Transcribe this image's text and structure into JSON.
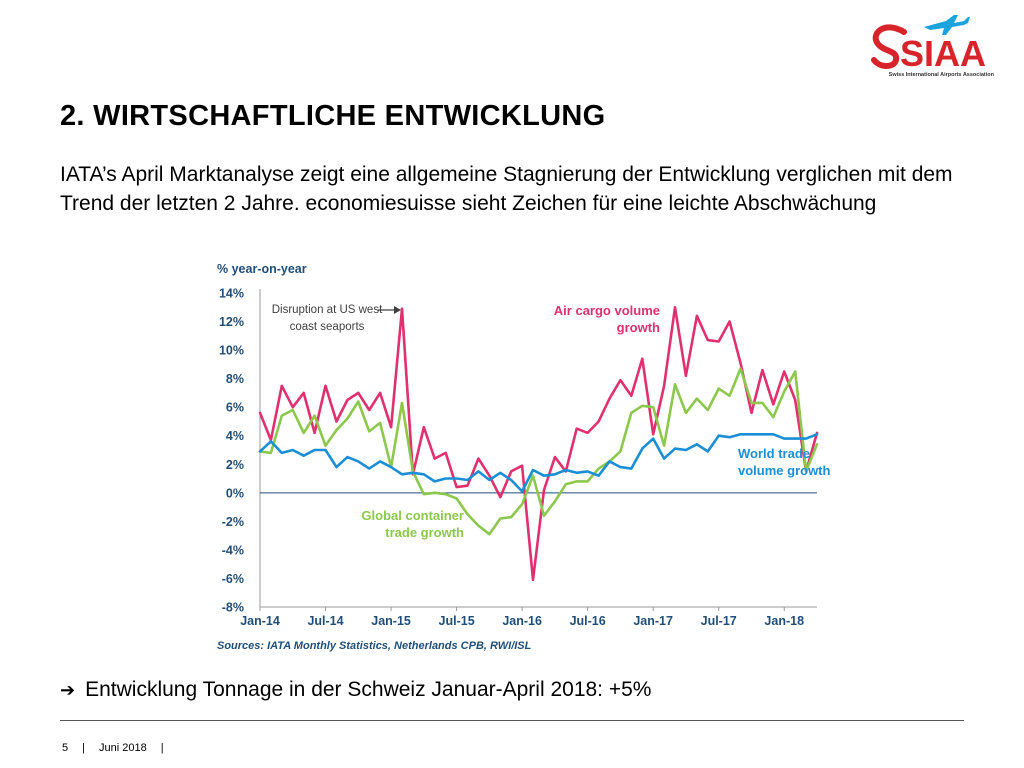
{
  "logo": {
    "text": "SIAA",
    "tagline": "Swiss International Airports Association",
    "icon": "airplane-icon",
    "color": "#d8232a"
  },
  "slide": {
    "title": "2. WIRTSCHAFTLICHE ENTWICKLUNG",
    "subtitle": "IATA’s April Marktanalyse zeigt eine allgemeine Stagnierung der Entwicklung verglichen mit dem Trend der letzten 2 Jahre. economiesuisse sieht Zeichen für eine leichte Abschwächung",
    "bullet_icon": "arrow-right-icon",
    "bullet": "Entwicklung Tonnage in der Schweiz Januar-April 2018: +5%"
  },
  "footer": {
    "page": "5",
    "separator": "|",
    "date": "Juni 2018"
  },
  "chart_data": {
    "type": "line",
    "title": "",
    "ylabel": "% year-on-year",
    "xlabel": "",
    "ylim": [
      -8,
      14
    ],
    "yticks": [
      "14%",
      "12%",
      "10%",
      "8%",
      "6%",
      "4%",
      "2%",
      "0%",
      "-2%",
      "-4%",
      "-6%",
      "-8%"
    ],
    "xticks": [
      "Jan-14",
      "Jul-14",
      "Jan-15",
      "Jul-15",
      "Jan-16",
      "Jul-16",
      "Jan-17",
      "Jul-17",
      "Jan-18"
    ],
    "x": [
      "Jan-14",
      "Feb-14",
      "Mar-14",
      "Apr-14",
      "May-14",
      "Jun-14",
      "Jul-14",
      "Aug-14",
      "Sep-14",
      "Oct-14",
      "Nov-14",
      "Dec-14",
      "Jan-15",
      "Feb-15",
      "Mar-15",
      "Apr-15",
      "May-15",
      "Jun-15",
      "Jul-15",
      "Aug-15",
      "Sep-15",
      "Oct-15",
      "Nov-15",
      "Dec-15",
      "Jan-16",
      "Feb-16",
      "Mar-16",
      "Apr-16",
      "May-16",
      "Jun-16",
      "Jul-16",
      "Aug-16",
      "Sep-16",
      "Oct-16",
      "Nov-16",
      "Dec-16",
      "Jan-17",
      "Feb-17",
      "Mar-17",
      "Apr-17",
      "May-17",
      "Jun-17",
      "Jul-17",
      "Aug-17",
      "Sep-17",
      "Oct-17",
      "Nov-17",
      "Dec-17",
      "Jan-18",
      "Feb-18",
      "Mar-18",
      "Apr-18"
    ],
    "series": [
      {
        "name": "Air cargo volume growth",
        "color": "#e0306e",
        "values": [
          5.6,
          3.7,
          7.5,
          6.0,
          7.0,
          4.2,
          7.5,
          5.0,
          6.5,
          7.0,
          5.8,
          7.0,
          4.6,
          12.9,
          1.3,
          4.6,
          2.4,
          2.8,
          0.4,
          0.5,
          2.4,
          1.2,
          -0.3,
          1.5,
          1.9,
          -6.1,
          0.2,
          2.5,
          1.5,
          4.5,
          4.2,
          5.0,
          6.6,
          7.9,
          6.8,
          9.4,
          4.1,
          7.5,
          13.0,
          8.2,
          12.4,
          10.7,
          10.6,
          12.0,
          9.1,
          5.6,
          8.6,
          6.2,
          8.5,
          6.5,
          1.5,
          4.2
        ]
      },
      {
        "name": "Global container trade growth",
        "color": "#8cc84b",
        "values": [
          2.9,
          2.8,
          5.4,
          5.8,
          4.2,
          5.4,
          3.3,
          4.4,
          5.2,
          6.4,
          4.3,
          4.9,
          1.8,
          6.3,
          1.5,
          -0.1,
          0.0,
          -0.1,
          -0.4,
          -1.5,
          -2.3,
          -2.9,
          -1.8,
          -1.7,
          -0.8,
          1.2,
          -1.6,
          -0.6,
          0.6,
          0.8,
          0.8,
          1.7,
          2.2,
          2.9,
          5.6,
          6.1,
          6.0,
          3.3,
          7.6,
          5.6,
          6.6,
          5.8,
          7.3,
          6.8,
          8.7,
          6.3,
          6.3,
          5.3,
          7.1,
          8.5,
          1.5,
          3.4
        ]
      },
      {
        "name": "World trade volume growth",
        "color": "#1a8fd6",
        "values": [
          2.9,
          3.6,
          2.8,
          3.0,
          2.6,
          3.0,
          3.0,
          1.8,
          2.5,
          2.2,
          1.7,
          2.2,
          1.8,
          1.3,
          1.4,
          1.3,
          0.8,
          1.0,
          1.0,
          0.9,
          1.5,
          0.9,
          1.4,
          0.9,
          0.1,
          1.6,
          1.2,
          1.3,
          1.6,
          1.4,
          1.5,
          1.2,
          2.2,
          1.8,
          1.7,
          3.1,
          3.8,
          2.4,
          3.1,
          3.0,
          3.4,
          2.9,
          4.0,
          3.9,
          4.1,
          4.1,
          4.1,
          4.1,
          3.8,
          3.8,
          3.8,
          4.1
        ]
      }
    ],
    "annotations": [
      {
        "text": "Disruption at US west coast seaports",
        "lines": [
          "Disruption at US west",
          "coast seaports"
        ],
        "color": "#404040"
      },
      {
        "text": "Air cargo volume growth",
        "lines": [
          "Air cargo volume",
          "growth"
        ],
        "color": "#e0306e"
      },
      {
        "text": "World trade volume growth",
        "lines": [
          "World trade",
          "volume growth"
        ],
        "color": "#1a8fd6"
      },
      {
        "text": "Global container trade growth",
        "lines": [
          "Global container",
          "trade growth"
        ],
        "color": "#8cc84b"
      }
    ],
    "source": "Sources: IATA Monthly Statistics, Netherlands CPB, RWI/ISL",
    "axis_color": "#999999",
    "tick_color": "#1f4e79",
    "grid": false
  }
}
